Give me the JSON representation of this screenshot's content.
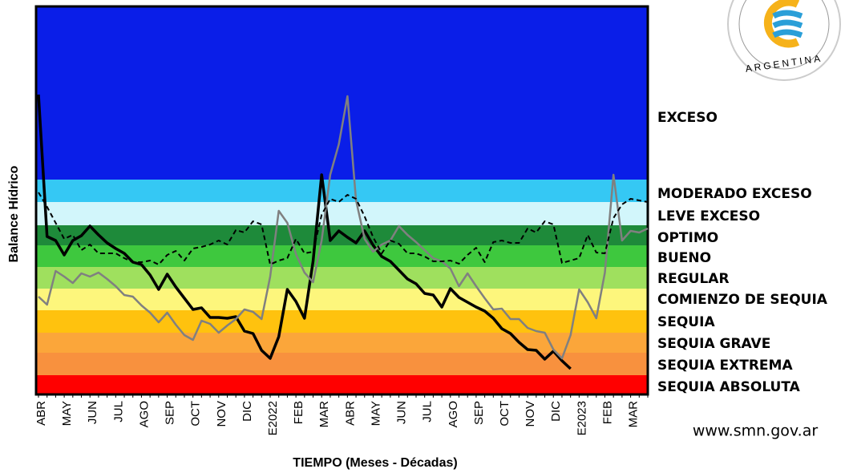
{
  "chart_data": {
    "type": "line",
    "ylabel": "Balance Hídrico",
    "xlabel": "TIEMPO (Meses - Décadas)",
    "ylim": [
      0,
      484
    ],
    "bands": [
      {
        "label": "SEQUIA ABSOLUTA",
        "from": 0,
        "to": 24,
        "color": "#ff0000"
      },
      {
        "label": "SEQUIA EXTREMA",
        "from": 24,
        "to": 52,
        "color": "#f8913e"
      },
      {
        "label": "SEQUIA GRAVE",
        "from": 52,
        "to": 77,
        "color": "#fba63a"
      },
      {
        "label": "SEQUIA",
        "from": 77,
        "to": 105,
        "color": "#ffc20e"
      },
      {
        "label": "COMIENZO DE SEQUIA",
        "from": 105,
        "to": 132,
        "color": "#fdf67c"
      },
      {
        "label": "REGULAR",
        "from": 132,
        "to": 159,
        "color": "#9fe05e"
      },
      {
        "label": "BUENO",
        "from": 159,
        "to": 186,
        "color": "#3ec83e"
      },
      {
        "label": "OPTIMO",
        "from": 186,
        "to": 211,
        "color": "#1e8a3a"
      },
      {
        "label": "LEVE EXCESO",
        "from": 211,
        "to": 240,
        "color": "#d2f6fb"
      },
      {
        "label": "MODERADO EXCESO",
        "from": 240,
        "to": 268,
        "color": "#35c8f4"
      },
      {
        "label": "EXCESO",
        "from": 268,
        "to": 484,
        "color": "#0a1ee8"
      }
    ],
    "categories": [
      "ABR",
      null,
      null,
      "MAY",
      null,
      null,
      "JUN",
      null,
      null,
      "JUL",
      null,
      null,
      "AGO",
      null,
      null,
      "SEP",
      null,
      null,
      "OCT",
      null,
      null,
      "NOV",
      null,
      null,
      "DIC",
      null,
      null,
      "E2022",
      null,
      null,
      "FEB",
      null,
      null,
      "MAR",
      null,
      null,
      "ABR",
      null,
      null,
      "MAY",
      null,
      null,
      "JUN",
      null,
      null,
      "JUL",
      null,
      null,
      "AGO",
      null,
      null,
      "SEP",
      null,
      null,
      "OCT",
      null,
      null,
      "NOV",
      null,
      null,
      "DIC",
      null,
      null,
      "E2023",
      null,
      null,
      "FEB",
      null,
      null,
      "MAR",
      null,
      null
    ],
    "series": [
      {
        "color": "#000000",
        "dash": false,
        "width": 3.5,
        "values": [
          374,
          197,
          192,
          174,
          192,
          198,
          210,
          199,
          189,
          182,
          176,
          165,
          162,
          149,
          131,
          150,
          134,
          120,
          106,
          108,
          96,
          96,
          95,
          97,
          79,
          76,
          55,
          45,
          72,
          131,
          116,
          95,
          166,
          274,
          192,
          204,
          196,
          189,
          204,
          186,
          172,
          166,
          155,
          144,
          138,
          126,
          124,
          109,
          132,
          121,
          115,
          109,
          104,
          95,
          82,
          76,
          65,
          56,
          55,
          44,
          54,
          42,
          32,
          null,
          null,
          null,
          null,
          null,
          null,
          null,
          null,
          null
        ]
      },
      {
        "color": "#808080",
        "dash": false,
        "width": 2.5,
        "values": [
          122,
          112,
          154,
          147,
          139,
          151,
          147,
          152,
          144,
          135,
          124,
          122,
          111,
          102,
          90,
          102,
          87,
          74,
          68,
          92,
          88,
          77,
          86,
          94,
          106,
          103,
          94,
          147,
          229,
          214,
          175,
          152,
          140,
          192,
          274,
          312,
          372,
          242,
          194,
          178,
          187,
          192,
          210,
          199,
          190,
          180,
          170,
          166,
          157,
          135,
          151,
          135,
          120,
          106,
          107,
          94,
          94,
          83,
          79,
          77,
          56,
          45,
          74,
          131,
          115,
          95,
          152,
          274,
          192,
          204,
          202,
          207
        ]
      },
      {
        "color": "#000000",
        "dash": true,
        "width": 2,
        "values": [
          252,
          234,
          214,
          194,
          199,
          180,
          187,
          176,
          176,
          176,
          170,
          165,
          165,
          167,
          162,
          174,
          179,
          167,
          182,
          184,
          187,
          192,
          187,
          205,
          202,
          216,
          212,
          162,
          167,
          170,
          194,
          176,
          178,
          224,
          244,
          240,
          249,
          244,
          222,
          196,
          176,
          192,
          188,
          176,
          176,
          172,
          166,
          166,
          167,
          163,
          174,
          183,
          165,
          190,
          192,
          189,
          189,
          207,
          202,
          216,
          212,
          164,
          167,
          170,
          199,
          177,
          176,
          220,
          237,
          244,
          242,
          240
        ]
      }
    ]
  },
  "logo": {
    "text": "ARGENTINA"
  },
  "footer": {
    "url": "www.smn.gov.ar"
  }
}
